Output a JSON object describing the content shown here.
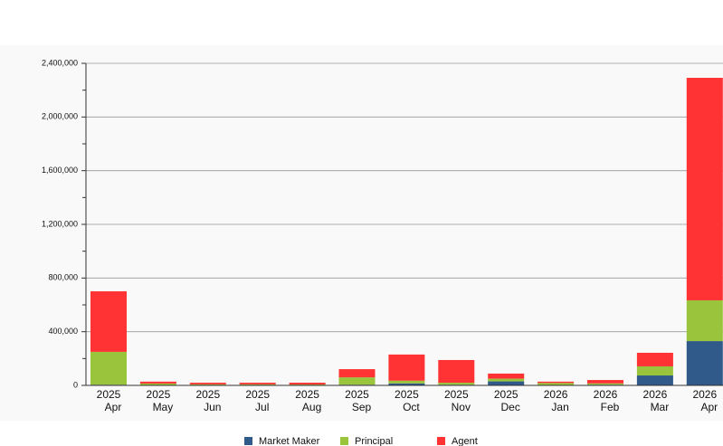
{
  "chart_data": {
    "type": "stacked_bar",
    "categories": [
      [
        "2025",
        "Apr"
      ],
      [
        "2025",
        "May"
      ],
      [
        "2025",
        "Jun"
      ],
      [
        "2025",
        "Jul"
      ],
      [
        "2025",
        "Aug"
      ],
      [
        "2025",
        "Sep"
      ],
      [
        "2025",
        "Oct"
      ],
      [
        "2025",
        "Nov"
      ],
      [
        "2025",
        "Dec"
      ],
      [
        "2026",
        "Jan"
      ],
      [
        "2026",
        "Feb"
      ],
      [
        "2026",
        "Mar"
      ],
      [
        "2026",
        "Apr"
      ]
    ],
    "series": [
      {
        "name": "Market Maker",
        "color": "#2f5a8a",
        "values": [
          5000,
          2000,
          2000,
          2000,
          2000,
          5000,
          15000,
          5000,
          30000,
          3000,
          5000,
          74000,
          330000
        ]
      },
      {
        "name": "Principal",
        "color": "#9bc43d",
        "values": [
          245000,
          12000,
          6000,
          6000,
          5000,
          55000,
          20000,
          15000,
          20000,
          15000,
          10000,
          68000,
          304000
        ]
      },
      {
        "name": "Agent",
        "color": "#ff3333",
        "values": [
          451000,
          14000,
          12000,
          12000,
          13000,
          61000,
          195000,
          169000,
          38000,
          10000,
          25000,
          101000,
          1658000
        ]
      }
    ],
    "ylim": [
      0,
      2400000
    ],
    "yticks": [
      {
        "value": 0,
        "label": "0"
      },
      {
        "value": 400000,
        "label": "400,000"
      },
      {
        "value": 800000,
        "label": "800,000"
      },
      {
        "value": 1200000,
        "label": "1,200,000"
      },
      {
        "value": 1600000,
        "label": "1,600,000"
      },
      {
        "value": 2000000,
        "label": "2,000,000"
      },
      {
        "value": 2400000,
        "label": "2,400,000"
      }
    ],
    "yminorticks": [
      200000,
      600000,
      1000000,
      1400000,
      1800000,
      2200000
    ],
    "grid": true,
    "legend": "bottom"
  }
}
